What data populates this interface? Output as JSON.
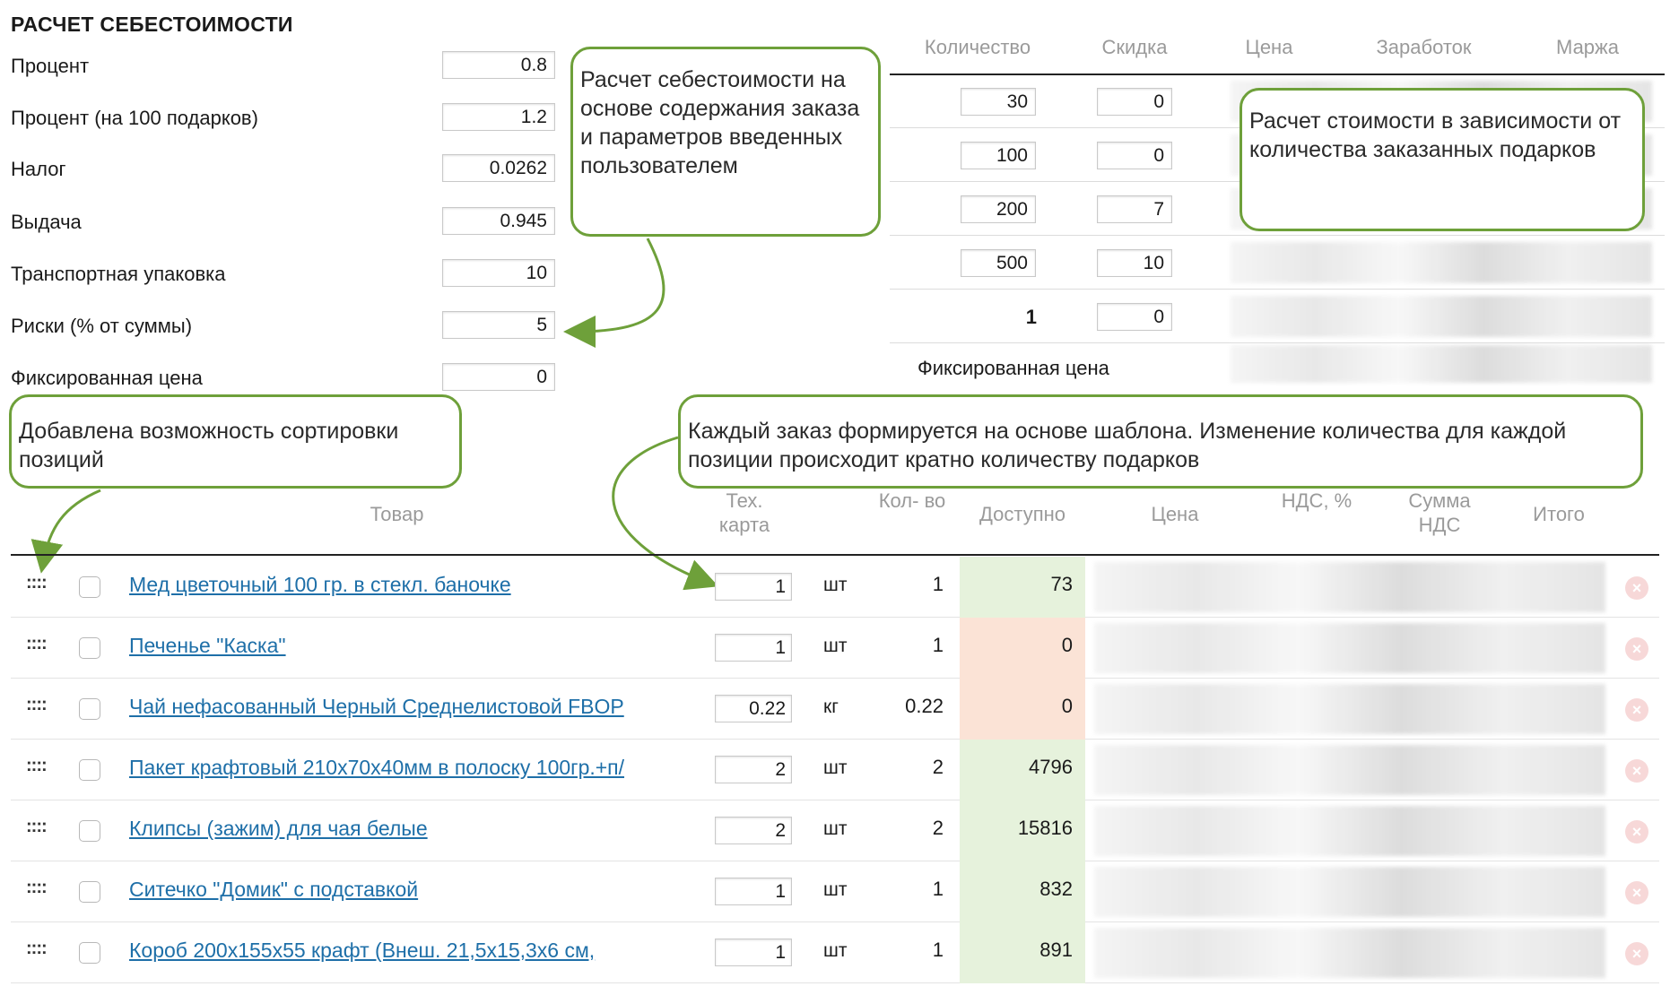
{
  "title": "РАСЧЕТ СЕБЕСТОИМОСТИ",
  "params": [
    {
      "label": "Процент",
      "value": "0.8"
    },
    {
      "label": "Процент (на 100 подарков)",
      "value": "1.2"
    },
    {
      "label": "Налог",
      "value": "0.0262"
    },
    {
      "label": "Выдача",
      "value": "0.945"
    },
    {
      "label": "Транспортная упаковка",
      "value": "10"
    },
    {
      "label": "Риски (% от суммы)",
      "value": "5"
    },
    {
      "label": "Фиксированная цена",
      "value": "0"
    }
  ],
  "pricing": {
    "headers": [
      "Количество",
      "Скидка",
      "Цена",
      "Заработок",
      "Маржа"
    ],
    "rows": [
      {
        "qty": "30",
        "discount": "0"
      },
      {
        "qty": "100",
        "discount": "0"
      },
      {
        "qty": "200",
        "discount": "7"
      },
      {
        "qty": "500",
        "discount": "10"
      },
      {
        "qty": "1",
        "discount": "0"
      }
    ],
    "fixed_label": "Фиксированная цена"
  },
  "callouts": {
    "cost": "Расчет себестоимости на основе содержания заказа и параметров введенных пользователем",
    "price": "Расчет стоимости в зависимости от количества заказанных подарков",
    "sort": "Добавлена возможность сортировки позиций",
    "template": "Каждый заказ формируется на основе шаблона. Изменение количества для каждой позиции происходит кратно количеству подарков"
  },
  "table": {
    "headers": {
      "product": "Товар",
      "tech": "Тех. карта",
      "qty": "Кол- во",
      "available": "Доступно",
      "price": "Цена",
      "vat": "НДС, %",
      "vat_sum": "Сумма НДС",
      "total": "Итого"
    },
    "rows": [
      {
        "name": "Мед цветочный 100 гр. в стекл. баночке",
        "tech": "1",
        "unit": "шт",
        "qty": "1",
        "available": "73",
        "status": "ok"
      },
      {
        "name": "Печенье \"Каска\"",
        "tech": "1",
        "unit": "шт",
        "qty": "1",
        "available": "0",
        "status": "out"
      },
      {
        "name": "Чай нефасованный Черный Среднелистовой FBOP",
        "tech": "0.22",
        "unit": "кг",
        "qty": "0.22",
        "available": "0",
        "status": "out"
      },
      {
        "name": "Пакет крафтовый 210х70х40мм в полоску 100гр.+п/",
        "tech": "2",
        "unit": "шт",
        "qty": "2",
        "available": "4796",
        "status": "ok"
      },
      {
        "name": "Клипсы (зажим) для чая белые",
        "tech": "2",
        "unit": "шт",
        "qty": "2",
        "available": "15816",
        "status": "ok"
      },
      {
        "name": "Ситечко \"Домик\" с подставкой",
        "tech": "1",
        "unit": "шт",
        "qty": "1",
        "available": "832",
        "status": "ok"
      },
      {
        "name": "Короб 200х155х55 крафт (Внеш. 21,5х15,3х6 см,",
        "tech": "1",
        "unit": "шт",
        "qty": "1",
        "available": "891",
        "status": "ok"
      }
    ]
  },
  "handle_glyph": "::::",
  "delete_glyph": "×",
  "colors": {
    "accent": "#6ea03a",
    "link": "#1e6fa8",
    "available_ok": "#e6f2dc",
    "available_out": "#fbe3d6"
  }
}
